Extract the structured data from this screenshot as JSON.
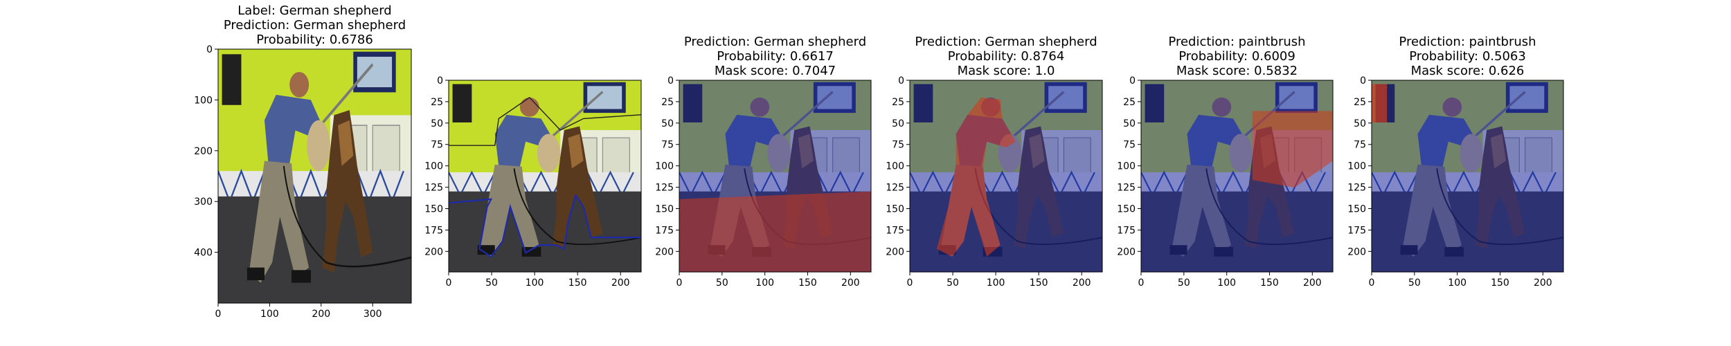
{
  "chart_data": [
    {
      "type": "image",
      "title_lines": [
        "Label: German shepherd",
        "Prediction: German shepherd",
        "Probability: 0.6786"
      ],
      "xticks": [
        "0",
        "100",
        "200",
        "300"
      ],
      "yticks": [
        "0",
        "100",
        "200",
        "300",
        "400"
      ],
      "xlim": [
        0,
        375
      ],
      "ylim": [
        500,
        0
      ],
      "overlay": "none"
    },
    {
      "type": "image",
      "title_lines": [],
      "xticks": [
        "0",
        "50",
        "100",
        "150",
        "200"
      ],
      "yticks": [
        "0",
        "25",
        "50",
        "75",
        "100",
        "125",
        "150",
        "175",
        "200"
      ],
      "xlim": [
        0,
        224
      ],
      "ylim": [
        224,
        0
      ],
      "overlay": "outline"
    },
    {
      "type": "image",
      "title_lines": [
        "Prediction: German shepherd",
        "Probability: 0.6617",
        "Mask score: 0.7047"
      ],
      "xticks": [
        "0",
        "50",
        "100",
        "150",
        "200"
      ],
      "yticks": [
        "0",
        "25",
        "50",
        "75",
        "100",
        "125",
        "150",
        "175",
        "200"
      ],
      "xlim": [
        0,
        224
      ],
      "ylim": [
        224,
        0
      ],
      "overlay": "floor"
    },
    {
      "type": "image",
      "title_lines": [
        "Prediction: German shepherd",
        "Probability: 0.8764",
        "Mask score: 1.0"
      ],
      "xticks": [
        "0",
        "50",
        "100",
        "150",
        "200"
      ],
      "yticks": [
        "0",
        "25",
        "50",
        "75",
        "100",
        "125",
        "150",
        "175",
        "200"
      ],
      "xlim": [
        0,
        224
      ],
      "ylim": [
        224,
        0
      ],
      "overlay": "person"
    },
    {
      "type": "image",
      "title_lines": [
        "Prediction: paintbrush",
        "Probability: 0.6009",
        "Mask score: 0.5832"
      ],
      "xticks": [
        "0",
        "50",
        "100",
        "150",
        "200"
      ],
      "yticks": [
        "0",
        "25",
        "50",
        "75",
        "100",
        "125",
        "150",
        "175",
        "200"
      ],
      "xlim": [
        0,
        224
      ],
      "ylim": [
        224,
        0
      ],
      "overlay": "door"
    },
    {
      "type": "image",
      "title_lines": [
        "Prediction: paintbrush",
        "Probability: 0.5063",
        "Mask score: 0.626"
      ],
      "xticks": [
        "0",
        "50",
        "100",
        "150",
        "200"
      ],
      "yticks": [
        "0",
        "25",
        "50",
        "75",
        "100",
        "125",
        "150",
        "175",
        "200"
      ],
      "xlim": [
        0,
        224
      ],
      "ylim": [
        224,
        0
      ],
      "overlay": "corner"
    }
  ],
  "colors": {
    "wall": "#c4dc2a",
    "floor": "#3a3a3c",
    "mask_blue": "#1e2aa8",
    "mask_red": "#d43a1a"
  }
}
